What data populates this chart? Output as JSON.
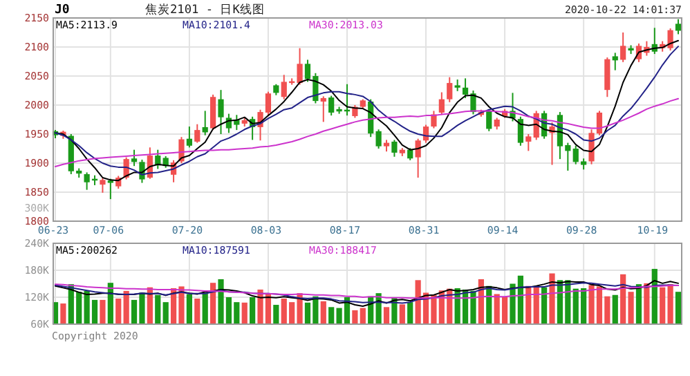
{
  "chart_data": [
    {
      "type": "candlestick",
      "title": "J0",
      "subtitle": "焦炭2101 - 日K线图",
      "annotations": [
        "2020-10-22 14:01:37",
        "300K"
      ],
      "categories": [
        "06-23",
        null,
        null,
        null,
        null,
        null,
        null,
        "07-06",
        null,
        null,
        null,
        null,
        null,
        null,
        null,
        null,
        null,
        "07-20",
        null,
        null,
        null,
        null,
        null,
        null,
        null,
        null,
        null,
        "08-03",
        null,
        null,
        null,
        null,
        null,
        null,
        null,
        null,
        null,
        "08-17",
        null,
        null,
        null,
        null,
        null,
        null,
        null,
        null,
        null,
        "08-31",
        null,
        null,
        null,
        null,
        null,
        null,
        null,
        null,
        null,
        "09-14",
        null,
        null,
        null,
        null,
        null,
        null,
        null,
        null,
        null,
        "09-28",
        null,
        null,
        null,
        null,
        null,
        null,
        null,
        null,
        "10-19",
        null,
        null,
        null
      ],
      "ohlc": [
        [
          1955,
          1957,
          1943,
          1948
        ],
        [
          1947,
          1956,
          1942,
          1954
        ],
        [
          1947,
          1950,
          1881,
          1886
        ],
        [
          1887,
          1891,
          1875,
          1882
        ],
        [
          1881,
          1884,
          1854,
          1867
        ],
        [
          1873,
          1879,
          1862,
          1870
        ],
        [
          1863,
          1874,
          1849,
          1871
        ],
        [
          1870,
          1873,
          1838,
          1866
        ],
        [
          1860,
          1878,
          1856,
          1875
        ],
        [
          1875,
          1910,
          1872,
          1907
        ],
        [
          1908,
          1923,
          1895,
          1902
        ],
        [
          1902,
          1906,
          1866,
          1872
        ],
        [
          1875,
          1927,
          1873,
          1913
        ],
        [
          1913,
          1923,
          1890,
          1896
        ],
        [
          1909,
          1912,
          1892,
          1895
        ],
        [
          1880,
          1905,
          1867,
          1901
        ],
        [
          1903,
          1945,
          1900,
          1941
        ],
        [
          1942,
          1963,
          1927,
          1930
        ],
        [
          1937,
          1967,
          1935,
          1957
        ],
        [
          1962,
          1990,
          1948,
          1953
        ],
        [
          1960,
          2018,
          1957,
          2014
        ],
        [
          2010,
          2026,
          1950,
          1979
        ],
        [
          1978,
          1985,
          1952,
          1960
        ],
        [
          1975,
          1983,
          1957,
          1966
        ],
        [
          1968,
          1978,
          1963,
          1974
        ],
        [
          1976,
          1980,
          1940,
          1962
        ],
        [
          1962,
          1992,
          1939,
          1988
        ],
        [
          1987,
          2023,
          1983,
          2020
        ],
        [
          2034,
          2036,
          2017,
          2021
        ],
        [
          2014,
          2052,
          2010,
          2040
        ],
        [
          2038,
          2046,
          2035,
          2041
        ],
        [
          2038,
          2098,
          2035,
          2071
        ],
        [
          2071,
          2078,
          2040,
          2045
        ],
        [
          2050,
          2055,
          2003,
          2007
        ],
        [
          2006,
          2015,
          1971,
          2012
        ],
        [
          2013,
          2016,
          1982,
          1987
        ],
        [
          1993,
          1997,
          1985,
          1989
        ],
        [
          1992,
          2036,
          1982,
          1989
        ],
        [
          1981,
          2000,
          1978,
          1997
        ],
        [
          1997,
          2010,
          1994,
          2008
        ],
        [
          2006,
          2010,
          1945,
          1951
        ],
        [
          1955,
          1958,
          1925,
          1929
        ],
        [
          1929,
          1940,
          1920,
          1935
        ],
        [
          1937,
          1940,
          1911,
          1918
        ],
        [
          1917,
          1926,
          1912,
          1923
        ],
        [
          1923,
          1926,
          1905,
          1908
        ],
        [
          1910,
          1942,
          1875,
          1939
        ],
        [
          1939,
          1966,
          1935,
          1963
        ],
        [
          1963,
          1990,
          1960,
          1984
        ],
        [
          1987,
          2022,
          1983,
          2010
        ],
        [
          2010,
          2048,
          2005,
          2038
        ],
        [
          2034,
          2044,
          2024,
          2030
        ],
        [
          2030,
          2046,
          2012,
          2018
        ],
        [
          2020,
          2025,
          1984,
          1988
        ],
        [
          1983,
          1992,
          1980,
          1988
        ],
        [
          1990,
          1993,
          1955,
          1959
        ],
        [
          1963,
          1978,
          1958,
          1975
        ],
        [
          1981,
          1993,
          1978,
          1990
        ],
        [
          1990,
          2021,
          1972,
          1977
        ],
        [
          1976,
          1980,
          1930,
          1935
        ],
        [
          1937,
          1950,
          1921,
          1946
        ],
        [
          1944,
          1990,
          1940,
          1986
        ],
        [
          1986,
          1990,
          1942,
          1946
        ],
        [
          1952,
          1970,
          1897,
          1963
        ],
        [
          1983,
          1988,
          1907,
          1929
        ],
        [
          1931,
          1935,
          1887,
          1921
        ],
        [
          1925,
          1930,
          1898,
          1902
        ],
        [
          1903,
          1908,
          1889,
          1897
        ],
        [
          1903,
          1958,
          1898,
          1952
        ],
        [
          1951,
          1990,
          1948,
          1987
        ],
        [
          2026,
          2082,
          2014,
          2079
        ],
        [
          2084,
          2090,
          2060,
          2077
        ],
        [
          2078,
          2125,
          2074,
          2102
        ],
        [
          2098,
          2103,
          2088,
          2094
        ],
        [
          2079,
          2106,
          2074,
          2102
        ],
        [
          2090,
          2110,
          2085,
          2100
        ],
        [
          2105,
          2133,
          2088,
          2092
        ],
        [
          2098,
          2110,
          2092,
          2105
        ],
        [
          2098,
          2132,
          2094,
          2129
        ],
        [
          2140,
          2148,
          2122,
          2128
        ]
      ],
      "colors": [
        "#1a9a1a",
        "#f05050",
        "#1a9a1a",
        "#1a9a1a",
        "#1a9a1a",
        "#1a9a1a",
        "#f05050",
        "#1a9a1a",
        "#f05050",
        "#f05050",
        "#1a9a1a",
        "#1a9a1a",
        "#f05050",
        "#1a9a1a",
        "#1a9a1a",
        "#f05050",
        "#f05050",
        "#1a9a1a",
        "#f05050",
        "#1a9a1a",
        "#f05050",
        "#1a9a1a",
        "#1a9a1a",
        "#1a9a1a",
        "#f05050",
        "#1a9a1a",
        "#f05050",
        "#f05050",
        "#1a9a1a",
        "#f05050",
        "#f05050",
        "#f05050",
        "#1a9a1a",
        "#1a9a1a",
        "#f05050",
        "#1a9a1a",
        "#1a9a1a",
        "#1a9a1a",
        "#f05050",
        "#f05050",
        "#1a9a1a",
        "#1a9a1a",
        "#f05050",
        "#1a9a1a",
        "#f05050",
        "#1a9a1a",
        "#f05050",
        "#f05050",
        "#f05050",
        "#f05050",
        "#f05050",
        "#1a9a1a",
        "#1a9a1a",
        "#1a9a1a",
        "#f05050",
        "#1a9a1a",
        "#f05050",
        "#f05050",
        "#1a9a1a",
        "#1a9a1a",
        "#f05050",
        "#f05050",
        "#1a9a1a",
        "#f05050",
        "#1a9a1a",
        "#1a9a1a",
        "#1a9a1a",
        "#1a9a1a",
        "#f05050",
        "#f05050",
        "#f05050",
        "#1a9a1a",
        "#f05050",
        "#1a9a1a",
        "#f05050",
        "#f05050",
        "#1a9a1a",
        "#f05050",
        "#f05050",
        "#1a9a1a"
      ],
      "series": [
        {
          "name": "MA5:2113.9",
          "type": "line",
          "color": "#000000",
          "values": [
            1952,
            1950,
            1940,
            1925,
            1907,
            1892,
            1875,
            1871,
            1870,
            1878,
            1884,
            1884,
            1894,
            1898,
            1896,
            1895,
            1909,
            1913,
            1925,
            1936,
            1959,
            1967,
            1973,
            1974,
            1979,
            1968,
            1970,
            1982,
            1993,
            2006,
            2022,
            2039,
            2044,
            2041,
            2035,
            2024,
            2008,
            1997,
            1995,
            1994,
            1987,
            1975,
            1964,
            1948,
            1931,
            1923,
            1925,
            1930,
            1943,
            1961,
            1987,
            2005,
            2016,
            2017,
            2012,
            1997,
            1986,
            1980,
            1978,
            1967,
            1965,
            1967,
            1958,
            1955,
            1954,
            1949,
            1932,
            1922,
            1920,
            1932,
            1963,
            1998,
            2039,
            2068,
            2091,
            2095,
            2098,
            2099,
            2106,
            2111
          ]
        },
        {
          "name": "MA10:2101.4",
          "type": "line",
          "color": "#222288",
          "values": [
            1952,
            1948,
            1940,
            1930,
            1918,
            1908,
            1900,
            1895,
            1893,
            1893,
            1888,
            1880,
            1883,
            1884,
            1887,
            1890,
            1897,
            1903,
            1911,
            1916,
            1927,
            1938,
            1943,
            1950,
            1958,
            1964,
            1968,
            1977,
            1984,
            1992,
            1995,
            2004,
            2013,
            2017,
            2021,
            2023,
            2023,
            2020,
            2018,
            2015,
            2006,
            1991,
            1980,
            1972,
            1963,
            1955,
            1950,
            1947,
            1946,
            1946,
            1955,
            1965,
            1973,
            1980,
            1987,
            1992,
            1995,
            1998,
            1997,
            1990,
            1981,
            1976,
            1969,
            1967,
            1961,
            1957,
            1950,
            1940,
            1938,
            1943,
            1956,
            1965,
            1981,
            1994,
            2011,
            2029,
            2048,
            2069,
            2087,
            2101
          ]
        },
        {
          "name": "MA30:2013.03",
          "type": "line",
          "color": "#cc33cc",
          "values": [
            1894,
            1898,
            1901,
            1904,
            1906,
            1908,
            1909,
            1910,
            1911,
            1912,
            1913,
            1914,
            1915,
            1916,
            1917,
            1918,
            1919,
            1920,
            1921,
            1922,
            1922,
            1923,
            1923,
            1924,
            1925,
            1926,
            1928,
            1929,
            1931,
            1934,
            1937,
            1941,
            1946,
            1950,
            1955,
            1959,
            1963,
            1967,
            1971,
            1974,
            1976,
            1978,
            1979,
            1979,
            1980,
            1981,
            1980,
            1982,
            1982,
            1984,
            1985,
            1987,
            1989,
            1990,
            1990,
            1990,
            1989,
            1988,
            1987,
            1984,
            1980,
            1978,
            1974,
            1973,
            1970,
            1968,
            1965,
            1962,
            1960,
            1960,
            1964,
            1969,
            1974,
            1980,
            1986,
            1993,
            1998,
            2002,
            2007,
            2011
          ]
        }
      ],
      "ylim": [
        1800,
        2150
      ],
      "yticks": [
        1800,
        1850,
        1900,
        1950,
        2000,
        2050,
        2100,
        2150
      ],
      "grid": true,
      "legend": "top left"
    },
    {
      "type": "bar",
      "annotations": [
        "Copyright 2020"
      ],
      "categories": [
        null,
        null,
        null,
        null,
        null,
        null,
        null,
        null,
        null,
        null,
        null,
        null,
        null,
        null,
        null,
        null,
        null,
        null,
        null,
        null,
        null,
        null,
        null,
        null,
        null,
        null,
        null,
        null,
        null,
        null,
        null,
        null,
        null,
        null,
        null,
        null,
        null,
        null,
        null,
        null,
        null,
        null,
        null,
        null,
        null,
        null,
        null,
        null,
        null,
        null,
        null,
        null,
        null,
        null,
        null,
        null,
        null,
        null,
        null,
        null,
        null,
        null,
        null,
        null,
        null,
        null,
        null,
        null,
        null,
        null,
        null,
        null,
        null,
        null,
        null,
        null,
        null,
        null,
        null,
        null
      ],
      "values": [
        109000,
        106000,
        149000,
        132000,
        134000,
        114000,
        114000,
        152000,
        117000,
        134000,
        114000,
        130000,
        142000,
        125000,
        109000,
        140000,
        144000,
        127000,
        117000,
        130000,
        152000,
        160000,
        120000,
        109000,
        108000,
        120000,
        137000,
        127000,
        103000,
        117000,
        109000,
        129000,
        108000,
        122000,
        111000,
        98000,
        96000,
        120000,
        91000,
        96000,
        122000,
        129000,
        98000,
        120000,
        104000,
        109000,
        158000,
        130000,
        125000,
        135000,
        139000,
        140000,
        137000,
        134000,
        160000,
        145000,
        127000,
        120000,
        150000,
        168000,
        145000,
        142000,
        142000,
        173000,
        158000,
        158000,
        139000,
        140000,
        147000,
        144000,
        122000,
        125000,
        171000,
        132000,
        149000,
        151000,
        183000,
        142000,
        149000,
        132000
      ],
      "colors": [
        "#1a9a1a",
        "#f05050",
        "#1a9a1a",
        "#1a9a1a",
        "#1a9a1a",
        "#1a9a1a",
        "#f05050",
        "#1a9a1a",
        "#f05050",
        "#f05050",
        "#1a9a1a",
        "#1a9a1a",
        "#f05050",
        "#1a9a1a",
        "#1a9a1a",
        "#f05050",
        "#f05050",
        "#1a9a1a",
        "#f05050",
        "#1a9a1a",
        "#f05050",
        "#1a9a1a",
        "#1a9a1a",
        "#1a9a1a",
        "#f05050",
        "#1a9a1a",
        "#f05050",
        "#f05050",
        "#1a9a1a",
        "#f05050",
        "#f05050",
        "#f05050",
        "#1a9a1a",
        "#1a9a1a",
        "#f05050",
        "#1a9a1a",
        "#1a9a1a",
        "#1a9a1a",
        "#f05050",
        "#f05050",
        "#1a9a1a",
        "#1a9a1a",
        "#f05050",
        "#1a9a1a",
        "#f05050",
        "#1a9a1a",
        "#f05050",
        "#f05050",
        "#f05050",
        "#f05050",
        "#f05050",
        "#1a9a1a",
        "#1a9a1a",
        "#1a9a1a",
        "#f05050",
        "#1a9a1a",
        "#f05050",
        "#f05050",
        "#1a9a1a",
        "#1a9a1a",
        "#f05050",
        "#f05050",
        "#1a9a1a",
        "#f05050",
        "#1a9a1a",
        "#1a9a1a",
        "#1a9a1a",
        "#1a9a1a",
        "#f05050",
        "#f05050",
        "#f05050",
        "#1a9a1a",
        "#f05050",
        "#f05050",
        "#1a9a1a",
        "#f05050",
        "#1a9a1a",
        "#f05050",
        "#f05050",
        "#1a9a1a"
      ],
      "series": [
        {
          "name": "MA5:200262",
          "type": "line",
          "color": "#000000",
          "values": [
            145000,
            141000,
            137000,
            131000,
            126000,
            127000,
            129000,
            129000,
            126000,
            126000,
            126000,
            129000,
            127000,
            129000,
            124000,
            129000,
            132000,
            129000,
            127000,
            132000,
            134000,
            137000,
            136000,
            134000,
            130000,
            123000,
            119000,
            120000,
            119000,
            121000,
            119000,
            117000,
            113000,
            117000,
            116000,
            114000,
            107000,
            109000,
            103000,
            100000,
            105000,
            112000,
            107000,
            113000,
            115000,
            112000,
            118000,
            124000,
            125000,
            131000,
            137000,
            134000,
            135000,
            137000,
            142000,
            143000,
            141000,
            137000,
            140000,
            142000,
            142000,
            145000,
            149000,
            154000,
            152000,
            155000,
            154000,
            154000,
            148000,
            146000,
            138000,
            136000,
            142000,
            139000,
            140000,
            146000,
            157000,
            151000,
            155000,
            151000
          ]
        },
        {
          "name": "MA10:187591",
          "type": "line",
          "color": "#222288",
          "values": [
            147000,
            144000,
            141000,
            138000,
            135000,
            132000,
            130000,
            128000,
            127000,
            126000,
            127000,
            129000,
            128000,
            128000,
            125000,
            128000,
            131000,
            128000,
            128000,
            128000,
            132000,
            135000,
            132000,
            131000,
            131000,
            129000,
            128000,
            128000,
            127000,
            125000,
            121000,
            118000,
            117000,
            118000,
            118000,
            116000,
            112000,
            111000,
            110000,
            108000,
            109000,
            109000,
            108000,
            108000,
            107000,
            109000,
            115000,
            116000,
            119000,
            123000,
            125000,
            126000,
            130000,
            131000,
            137000,
            140000,
            137000,
            136000,
            139000,
            142000,
            143000,
            143000,
            143000,
            147000,
            147000,
            148000,
            150000,
            152000,
            151000,
            149000,
            147000,
            145000,
            148000,
            144000,
            143000,
            142000,
            146000,
            147000,
            147000,
            146000
          ]
        },
        {
          "name": "MA30:188417",
          "type": "line",
          "color": "#cc33cc",
          "values": [
            149000,
            148000,
            146000,
            145000,
            143000,
            142000,
            141000,
            140000,
            140000,
            139000,
            139000,
            138000,
            138000,
            137000,
            137000,
            137000,
            136000,
            136000,
            135000,
            134000,
            134000,
            133000,
            132000,
            131000,
            130000,
            129000,
            128000,
            128000,
            127000,
            126000,
            126000,
            127000,
            126000,
            125000,
            125000,
            124000,
            124000,
            122000,
            122000,
            120000,
            121000,
            121000,
            119000,
            119000,
            119000,
            118000,
            118000,
            118000,
            119000,
            119000,
            118000,
            118000,
            118000,
            119000,
            121000,
            122000,
            121000,
            121000,
            123000,
            124000,
            126000,
            126000,
            127000,
            129000,
            130000,
            132000,
            134000,
            134000,
            136000,
            138000,
            138000,
            138000,
            140000,
            141000,
            142000,
            144000,
            144000,
            145000,
            146000,
            146000
          ]
        }
      ],
      "ylim": [
        60000,
        240000
      ],
      "yticks": [
        {
          "value": 60000,
          "label": "60K"
        },
        {
          "value": 120000,
          "label": "120K"
        },
        {
          "value": 180000,
          "label": "180K"
        },
        {
          "value": 240000,
          "label": "240K"
        }
      ],
      "grid": true,
      "legend": "top left",
      "tick_labels": "y"
    }
  ]
}
